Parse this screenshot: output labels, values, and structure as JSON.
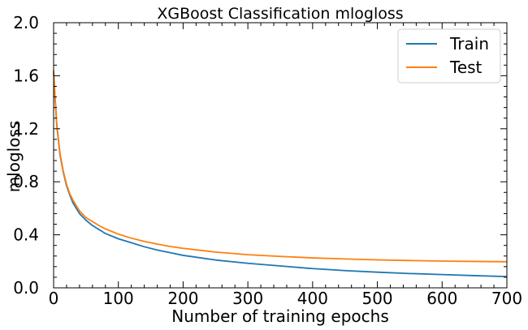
{
  "chart_data": {
    "type": "line",
    "title": "XGBoost Classification mlogloss",
    "xlabel": "Number of training epochs",
    "ylabel": "mlogloss",
    "xlim": [
      0,
      700
    ],
    "ylim": [
      0.0,
      2.0
    ],
    "xticks": [
      0,
      100,
      200,
      300,
      400,
      500,
      600,
      700
    ],
    "xtick_labels": [
      "0",
      "100",
      "200",
      "300",
      "400",
      "500",
      "600",
      "700"
    ],
    "yticks": [
      0.0,
      0.4,
      0.8,
      1.2,
      1.6,
      2.0
    ],
    "ytick_labels": [
      "0.0",
      "0.4",
      "0.8",
      "1.2",
      "1.6",
      "2.0"
    ],
    "grid": false,
    "legend_position": "top-right",
    "series": [
      {
        "name": "Train",
        "color": "#1f77b4",
        "x": [
          0,
          2,
          5,
          10,
          15,
          20,
          25,
          30,
          40,
          50,
          60,
          70,
          80,
          90,
          100,
          120,
          140,
          160,
          180,
          200,
          250,
          300,
          350,
          400,
          450,
          500,
          550,
          600,
          650,
          700
        ],
        "y": [
          1.63,
          1.45,
          1.22,
          1.0,
          0.87,
          0.77,
          0.7,
          0.64,
          0.56,
          0.51,
          0.47,
          0.44,
          0.41,
          0.39,
          0.37,
          0.34,
          0.31,
          0.285,
          0.265,
          0.245,
          0.21,
          0.185,
          0.165,
          0.145,
          0.13,
          0.118,
          0.108,
          0.1,
          0.092,
          0.085
        ]
      },
      {
        "name": "Test",
        "color": "#ff7f0e",
        "x": [
          0,
          2,
          5,
          10,
          15,
          20,
          25,
          30,
          40,
          50,
          60,
          70,
          80,
          90,
          100,
          120,
          140,
          160,
          180,
          200,
          250,
          300,
          350,
          400,
          450,
          500,
          550,
          600,
          650,
          700
        ],
        "y": [
          1.64,
          1.46,
          1.23,
          1.01,
          0.88,
          0.78,
          0.71,
          0.66,
          0.58,
          0.53,
          0.5,
          0.47,
          0.445,
          0.425,
          0.405,
          0.375,
          0.35,
          0.33,
          0.312,
          0.298,
          0.27,
          0.25,
          0.237,
          0.226,
          0.218,
          0.211,
          0.206,
          0.202,
          0.199,
          0.197
        ]
      }
    ]
  }
}
